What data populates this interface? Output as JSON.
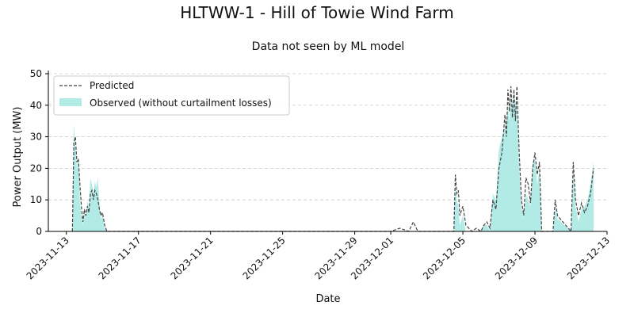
{
  "chart_data": {
    "type": "area",
    "title": "HLTWW-1 - Hill of Towie Wind Farm",
    "subtitle": "Data not seen by ML model",
    "xlabel": "Date",
    "ylabel": "Power Output (MW)",
    "xlim": [
      "2023-11-12",
      "2023-12-13"
    ],
    "ylim": [
      0,
      51
    ],
    "x_ticks": [
      "2023-11-13",
      "2023-11-17",
      "2023-11-21",
      "2023-11-25",
      "2023-11-29",
      "2023-12-01",
      "2023-12-05",
      "2023-12-09",
      "2023-12-13"
    ],
    "y_ticks": [
      0,
      10,
      20,
      30,
      40,
      50
    ],
    "grid": "horizontal",
    "legend_position": "top-left",
    "colors": {
      "observed": "#b2ebe6",
      "predicted": "#444444"
    },
    "series": [
      {
        "name": "Predicted",
        "style": "dashed-line",
        "x": [
          "2023-11-13 08:00",
          "2023-11-13 10:00",
          "2023-11-13 12:00",
          "2023-11-13 14:00",
          "2023-11-13 16:00",
          "2023-11-13 18:00",
          "2023-11-13 20:00",
          "2023-11-13 22:00",
          "2023-11-14 00:00",
          "2023-11-14 02:00",
          "2023-11-14 04:00",
          "2023-11-14 06:00",
          "2023-11-14 08:00",
          "2023-11-14 10:00",
          "2023-11-14 12:00",
          "2023-11-14 14:00",
          "2023-11-14 16:00",
          "2023-11-14 18:00",
          "2023-11-14 20:00",
          "2023-11-14 22:00",
          "2023-11-15 00:00",
          "2023-11-15 03:00",
          "2023-11-15 06:00",
          "2023-11-15 12:00",
          "2023-11-15 18:00",
          "2023-11-16 00:00",
          "2023-11-16 06:00",
          "2023-12-01 00:00",
          "2023-12-01 12:00",
          "2023-12-02 00:00",
          "2023-12-02 06:00",
          "2023-12-02 12:00",
          "2023-12-04 12:00",
          "2023-12-04 14:00",
          "2023-12-04 16:00",
          "2023-12-04 18:00",
          "2023-12-04 20:00",
          "2023-12-05 00:00",
          "2023-12-05 04:00",
          "2023-12-05 12:00",
          "2023-12-05 18:00",
          "2023-12-06 00:00",
          "2023-12-06 04:00",
          "2023-12-06 08:00",
          "2023-12-06 12:00",
          "2023-12-06 16:00",
          "2023-12-06 20:00",
          "2023-12-07 00:00",
          "2023-12-07 04:00",
          "2023-12-07 08:00",
          "2023-12-07 10:00",
          "2023-12-07 12:00",
          "2023-12-07 14:00",
          "2023-12-07 16:00",
          "2023-12-07 18:00",
          "2023-12-07 20:00",
          "2023-12-07 22:00",
          "2023-12-08 00:00",
          "2023-12-08 03:00",
          "2023-12-08 06:00",
          "2023-12-08 09:00",
          "2023-12-08 12:00",
          "2023-12-08 15:00",
          "2023-12-08 18:00",
          "2023-12-08 21:00",
          "2023-12-09 00:00",
          "2023-12-09 03:00",
          "2023-12-09 06:00",
          "2023-12-09 09:00",
          "2023-12-10 00:00",
          "2023-12-10 03:00",
          "2023-12-10 06:00",
          "2023-12-11 00:00",
          "2023-12-11 03:00",
          "2023-12-11 06:00",
          "2023-12-11 10:00",
          "2023-12-11 14:00",
          "2023-12-11 18:00",
          "2023-12-11 22:00",
          "2023-12-12 02:00",
          "2023-12-12 06:00"
        ],
        "values": [
          0,
          28,
          30,
          22,
          23,
          15,
          8,
          3,
          7,
          5,
          8,
          6,
          12,
          13,
          10,
          13,
          12,
          10,
          7,
          5,
          6,
          2,
          0,
          0,
          0,
          0,
          0,
          0,
          1,
          0,
          3,
          0,
          0,
          18,
          12,
          13,
          5,
          8,
          2,
          0,
          1,
          0,
          2,
          3,
          1,
          10,
          7,
          20,
          25,
          37,
          30,
          45,
          38,
          46,
          36,
          45,
          35,
          46,
          25,
          10,
          5,
          17,
          15,
          9,
          20,
          25,
          18,
          22,
          0,
          0,
          10,
          5,
          0,
          22,
          10,
          5,
          9,
          6,
          8,
          12,
          20
        ]
      },
      {
        "name": "Observed (without curtailment losses)",
        "style": "filled-area",
        "x": [
          "2023-11-13 08:00",
          "2023-11-13 10:00",
          "2023-11-13 12:00",
          "2023-11-13 14:00",
          "2023-11-13 16:00",
          "2023-11-13 18:00",
          "2023-11-13 20:00",
          "2023-11-13 22:00",
          "2023-11-14 00:00",
          "2023-11-14 02:00",
          "2023-11-14 04:00",
          "2023-11-14 06:00",
          "2023-11-14 08:00",
          "2023-11-14 10:00",
          "2023-11-14 12:00",
          "2023-11-14 14:00",
          "2023-11-14 16:00",
          "2023-11-14 18:00",
          "2023-11-14 20:00",
          "2023-11-14 22:00",
          "2023-11-15 00:00",
          "2023-11-15 03:00",
          "2023-11-15 06:00",
          "2023-11-15 12:00",
          "2023-11-15 18:00",
          "2023-11-16 00:00",
          "2023-11-16 06:00",
          "2023-12-01 00:00",
          "2023-12-01 12:00",
          "2023-12-02 00:00",
          "2023-12-02 06:00",
          "2023-12-02 12:00",
          "2023-12-04 12:00",
          "2023-12-04 14:00",
          "2023-12-04 16:00",
          "2023-12-04 18:00",
          "2023-12-04 20:00",
          "2023-12-05 00:00",
          "2023-12-05 04:00",
          "2023-12-05 12:00",
          "2023-12-05 18:00",
          "2023-12-06 00:00",
          "2023-12-06 04:00",
          "2023-12-06 08:00",
          "2023-12-06 12:00",
          "2023-12-06 16:00",
          "2023-12-06 20:00",
          "2023-12-07 00:00",
          "2023-12-07 04:00",
          "2023-12-07 08:00",
          "2023-12-07 10:00",
          "2023-12-07 12:00",
          "2023-12-07 14:00",
          "2023-12-07 16:00",
          "2023-12-07 18:00",
          "2023-12-07 20:00",
          "2023-12-07 22:00",
          "2023-12-08 00:00",
          "2023-12-08 03:00",
          "2023-12-08 06:00",
          "2023-12-08 09:00",
          "2023-12-08 12:00",
          "2023-12-08 15:00",
          "2023-12-08 18:00",
          "2023-12-08 21:00",
          "2023-12-09 00:00",
          "2023-12-09 03:00",
          "2023-12-09 06:00",
          "2023-12-09 09:00",
          "2023-12-10 00:00",
          "2023-12-10 03:00",
          "2023-12-10 06:00",
          "2023-12-11 00:00",
          "2023-12-11 03:00",
          "2023-12-11 06:00",
          "2023-12-11 10:00",
          "2023-12-11 14:00",
          "2023-12-11 18:00",
          "2023-12-11 22:00",
          "2023-12-12 02:00",
          "2023-12-12 06:00"
        ],
        "values": [
          0,
          34,
          27,
          20,
          24,
          10,
          5,
          2,
          8,
          4,
          10,
          7,
          17,
          15,
          12,
          16,
          14,
          17,
          9,
          4,
          5,
          1,
          0,
          0,
          0,
          0,
          0,
          0,
          0,
          0,
          0,
          0,
          0,
          15,
          10,
          8,
          2,
          5,
          0,
          0,
          0,
          0,
          2,
          2,
          0,
          12,
          10,
          26,
          30,
          33,
          35,
          40,
          35,
          44,
          40,
          44,
          38,
          43,
          20,
          8,
          4,
          12,
          10,
          8,
          22,
          23,
          15,
          20,
          0,
          0,
          8,
          4,
          0,
          20,
          8,
          3,
          7,
          8,
          10,
          15,
          22
        ]
      }
    ]
  },
  "legend": {
    "predicted_label": "Predicted",
    "observed_label": "Observed (without curtailment losses)"
  }
}
